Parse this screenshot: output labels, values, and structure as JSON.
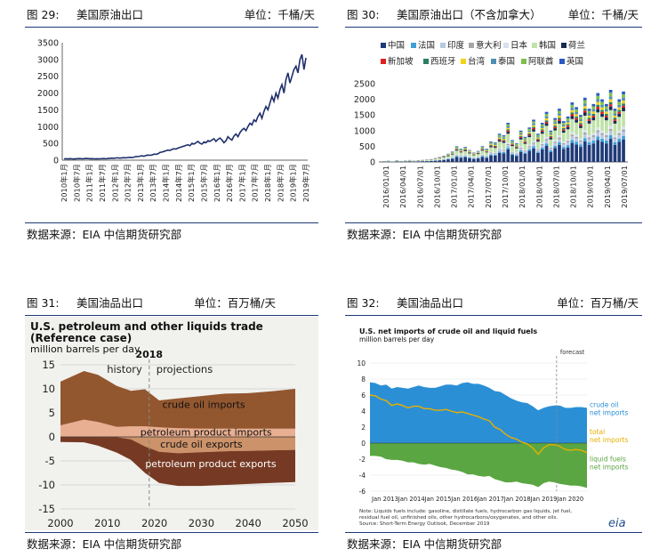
{
  "panels": [
    {
      "fig": "图 29:",
      "title": "美国原油出口",
      "unit": "单位：千桶/天",
      "source": "数据来源：EIA    中信期货研究部"
    },
    {
      "fig": "图 30:",
      "title": "美国原油出口（不含加拿大）",
      "unit": "单位：千桶/天",
      "source": "数据来源：EIA    中信期货研究部"
    },
    {
      "fig": "图 31:",
      "title": "美国油品出口",
      "unit": "单位：百万桶/天",
      "source": "数据来源：EIA    中信期货研究部"
    },
    {
      "fig": "图 32:",
      "title": "美国油品出口",
      "unit": "单位：百万桶/天",
      "source": "数据来源：EIA    中信期货研究部"
    }
  ],
  "chart_data": [
    {
      "type": "line",
      "series_color": "#1f2f6b",
      "ylim": [
        0,
        3500
      ],
      "yticks": [
        0,
        500,
        1000,
        1500,
        2000,
        2500,
        3000,
        3500
      ],
      "xticks": [
        "2010年1月",
        "2010年7月",
        "2011年1月",
        "2011年7月",
        "2012年1月",
        "2012年7月",
        "2013年1月",
        "2013年7月",
        "2014年1月",
        "2014年7月",
        "2015年1月",
        "2015年7月",
        "2016年1月",
        "2016年7月",
        "2017年1月",
        "2017年7月",
        "2018年1月",
        "2018年7月",
        "2019年1月",
        "2019年7月"
      ],
      "x_monthly_start": "2010-01",
      "values": [
        40,
        42,
        38,
        45,
        40,
        35,
        42,
        44,
        48,
        40,
        45,
        50,
        48,
        42,
        45,
        40,
        38,
        42,
        40,
        45,
        48,
        40,
        50,
        55,
        60,
        55,
        65,
        70,
        62,
        68,
        75,
        70,
        80,
        85,
        78,
        90,
        110,
        105,
        120,
        130,
        115,
        140,
        150,
        145,
        155,
        180,
        175,
        190,
        230,
        240,
        260,
        280,
        300,
        290,
        320,
        340,
        330,
        360,
        380,
        400,
        420,
        440,
        460,
        430,
        500,
        480,
        520,
        560,
        500,
        480,
        540,
        520,
        580,
        560,
        600,
        640,
        560,
        620,
        660,
        600,
        520,
        580,
        700,
        640,
        600,
        720,
        780,
        700,
        820,
        900,
        950,
        880,
        1000,
        1100,
        1050,
        1200,
        1150,
        1300,
        1400,
        1250,
        1450,
        1600,
        1500,
        1700,
        1900,
        1750,
        2000,
        1850,
        2100,
        2250,
        2000,
        2400,
        2600,
        2300,
        2500,
        2700,
        2800,
        2600,
        3000,
        3150,
        2700,
        3050
      ]
    },
    {
      "type": "bar",
      "stacked": true,
      "legend": [
        {
          "name": "中国",
          "color": "#1f3a78"
        },
        {
          "name": "法国",
          "color": "#3fa0d8"
        },
        {
          "name": "印度",
          "color": "#b7c9e3"
        },
        {
          "name": "意大利",
          "color": "#a6a6a6"
        },
        {
          "name": "日本",
          "color": "#d9e1ef"
        },
        {
          "name": "韩国",
          "color": "#bfe2a8"
        },
        {
          "name": "荷兰",
          "color": "#1a2a4f"
        },
        {
          "name": "新加坡",
          "color": "#e02020"
        },
        {
          "name": "西班牙",
          "color": "#2a7f62"
        },
        {
          "name": "台湾",
          "color": "#f2d21a"
        },
        {
          "name": "泰国",
          "color": "#4e8fb3"
        },
        {
          "name": "阿联酋",
          "color": "#7fbf4d"
        },
        {
          "name": "英国",
          "color": "#2b59c3"
        }
      ],
      "ylim": [
        0,
        2500
      ],
      "yticks": [
        0,
        500,
        1000,
        1500,
        2000,
        2500
      ],
      "xticks": [
        "2016/01/01",
        "2016/04/01",
        "2016/07/01",
        "2016/10/01",
        "2017/01/01",
        "2017/04/01",
        "2017/07/01",
        "2017/10/01",
        "2018/01/01",
        "2018/04/01",
        "2018/07/01",
        "2018/10/01",
        "2019/01/01",
        "2019/04/01",
        "2019/07/01"
      ],
      "totals": [
        30,
        40,
        25,
        50,
        35,
        45,
        60,
        40,
        55,
        70,
        80,
        90,
        120,
        160,
        200,
        260,
        330,
        500,
        420,
        480,
        380,
        300,
        350,
        500,
        420,
        650,
        620,
        900,
        850,
        1250,
        700,
        600,
        1000,
        800,
        1100,
        1350,
        900,
        1250,
        1600,
        1000,
        1400,
        1700,
        1300,
        1450,
        1900,
        1750,
        1500,
        2050,
        1700,
        1850,
        2200,
        2000,
        1850,
        2300,
        1700,
        2000,
        2250
      ]
    },
    {
      "type": "area",
      "title": "U.S. petroleum and other liquids trade",
      "subtitle": "(Reference case)",
      "ylabel": "million barrels per day",
      "marker_year": "2018",
      "history_label": "history",
      "projections_label": "projections",
      "xticks": [
        2000,
        2010,
        2020,
        2030,
        2040,
        2050
      ],
      "yticks": [
        15,
        10,
        5,
        0,
        -5,
        -10,
        -15
      ],
      "ylim": [
        -15,
        15
      ],
      "xlim": [
        2000,
        2050
      ],
      "series": [
        {
          "name": "crude oil imports",
          "color": "#8b4a1e",
          "years": [
            2000,
            2005,
            2008,
            2012,
            2015,
            2018,
            2021,
            2025,
            2030,
            2035,
            2040,
            2045,
            2050
          ],
          "values": [
            9.1,
            10.1,
            9.8,
            8.5,
            7.4,
            7.7,
            5.6,
            6.2,
            6.8,
            7.3,
            7.4,
            7.8,
            8.3
          ]
        },
        {
          "name": "petroleum product imports",
          "color": "#e8a98a",
          "years": [
            2000,
            2005,
            2008,
            2012,
            2015,
            2018,
            2021,
            2025,
            2030,
            2035,
            2040,
            2045,
            2050
          ],
          "values": [
            2.4,
            3.6,
            3.1,
            2.1,
            2.2,
            2.2,
            2.0,
            1.8,
            1.7,
            1.7,
            1.7,
            1.7,
            1.7
          ]
        },
        {
          "name": "crude oil exports",
          "color": "#c98a5e",
          "years": [
            2000,
            2005,
            2008,
            2012,
            2015,
            2018,
            2021,
            2025,
            2030,
            2035,
            2040,
            2045,
            2050
          ],
          "values": [
            0.05,
            0.03,
            0.03,
            0.07,
            0.5,
            2.0,
            3.1,
            3.4,
            3.2,
            3.0,
            2.9,
            2.8,
            2.7
          ]
        },
        {
          "name": "petroleum product exports",
          "color": "#6b2a12",
          "years": [
            2000,
            2005,
            2008,
            2012,
            2015,
            2018,
            2021,
            2025,
            2030,
            2035,
            2040,
            2045,
            2050
          ],
          "values": [
            1.0,
            1.1,
            1.8,
            3.2,
            4.3,
            5.5,
            6.5,
            6.8,
            7.0,
            7.0,
            6.9,
            6.8,
            6.7
          ]
        }
      ]
    },
    {
      "type": "area",
      "title": "U.S. net imports of crude oil and liquid fuels",
      "ylabel": "million barrels per day",
      "forecast_label": "forecast",
      "source_note_1": "Note: Liquids fuels include: gasoline, distillate fuels, hydrocarbon gas liquids, jet fuel,",
      "source_note_2": "residual fuel oil, unfinished oils, other hydrocarbons/oxygenates, and other oils.",
      "source_note_3": "Source: Short-Term Energy Outlook, December 2019",
      "logo": "eia",
      "xticks": [
        "Jan 2013",
        "Jan 2014",
        "Jan 2015",
        "Jan 2016",
        "Jan 2017",
        "Jan 2018",
        "Jan 2019",
        "Jan 2020"
      ],
      "yticks": [
        10,
        8,
        6,
        4,
        2,
        0,
        -2,
        -4,
        -6
      ],
      "ylim": [
        -6,
        10
      ],
      "series": [
        {
          "name": "crude oil",
          "name2": "net imports",
          "color": "#2b8fd6"
        },
        {
          "name": "total",
          "name2": "net imports",
          "color": "#e6b000"
        },
        {
          "name": "liquid fuels",
          "name2": "net imports",
          "color": "#5aa642"
        }
      ],
      "crude_net_imports": [
        7.6,
        7.5,
        7.2,
        7.3,
        6.8,
        7.0,
        6.9,
        6.8,
        7.0,
        7.2,
        7.0,
        6.9,
        6.9,
        7.1,
        7.3,
        7.3,
        7.2,
        7.5,
        7.6,
        7.4,
        7.4,
        7.2,
        6.9,
        6.5,
        6.4,
        6.0,
        5.6,
        5.3,
        5.1,
        5.0,
        4.6,
        4.1,
        4.4,
        4.6,
        4.7,
        4.7,
        4.4,
        4.4,
        4.5,
        4.5,
        4.4
      ],
      "liquid_net_imports": [
        -1.6,
        -1.6,
        -1.7,
        -2.0,
        -2.1,
        -2.1,
        -2.2,
        -2.4,
        -2.4,
        -2.6,
        -2.7,
        -2.6,
        -2.8,
        -3.0,
        -3.1,
        -3.3,
        -3.4,
        -3.6,
        -3.9,
        -3.9,
        -4.1,
        -4.2,
        -4.1,
        -4.5,
        -4.7,
        -4.9,
        -4.9,
        -4.8,
        -5.0,
        -5.1,
        -5.2,
        -5.5,
        -5.0,
        -4.8,
        -4.9,
        -5.1,
        -5.2,
        -5.3,
        -5.3,
        -5.4,
        -5.6
      ],
      "total_net_imports": [
        6.0,
        5.9,
        5.5,
        5.3,
        4.7,
        4.9,
        4.7,
        4.4,
        4.6,
        4.6,
        4.3,
        4.3,
        4.1,
        4.1,
        4.2,
        4.0,
        3.8,
        3.9,
        3.7,
        3.5,
        3.3,
        3.0,
        2.8,
        2.0,
        1.7,
        1.1,
        0.7,
        0.5,
        0.1,
        -0.1,
        -0.6,
        -1.4,
        -0.6,
        -0.2,
        -0.2,
        -0.4,
        -0.8,
        -0.9,
        -0.8,
        -0.9,
        -1.2
      ]
    }
  ]
}
